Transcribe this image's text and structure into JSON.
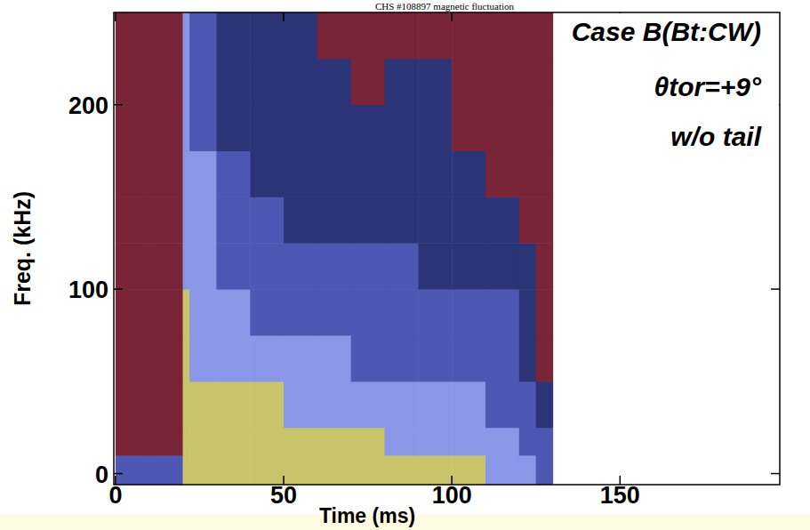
{
  "chart_data": {
    "type": "heatmap",
    "title": "CHS #108897 magnetic fluctuation",
    "x_label": "Time (ms)",
    "y_label": "Freq. (kHz)",
    "annotations": [
      "Case B(Bt:CW)",
      "θtor=+9°",
      "w/o tail"
    ],
    "xlim": [
      -0.5,
      197.5
    ],
    "xticks": [
      0,
      50,
      100,
      150
    ],
    "ylim": [
      -6,
      250
    ],
    "yticks": [
      0,
      100,
      200
    ],
    "grid": false,
    "colors": [
      "#7a2438",
      "#2c3478",
      "#4c58b4",
      "#8a96e6",
      "#c8c46a"
    ],
    "x_bins": [
      0,
      10,
      20,
      22,
      30,
      40,
      50,
      60,
      70,
      80,
      90,
      100,
      110,
      120,
      125,
      130
    ],
    "y_bins": [
      -6,
      10,
      25,
      50,
      75,
      100,
      125,
      150,
      175,
      200,
      225,
      250
    ],
    "cells": [
      [
        2,
        2,
        4,
        4,
        4,
        4,
        4,
        4,
        4,
        4,
        4,
        4,
        3,
        3,
        2
      ],
      [
        0,
        0,
        4,
        4,
        4,
        4,
        4,
        4,
        4,
        3,
        3,
        3,
        3,
        2,
        2
      ],
      [
        0,
        0,
        4,
        4,
        4,
        4,
        3,
        3,
        3,
        3,
        3,
        3,
        2,
        2,
        1
      ],
      [
        0,
        0,
        4,
        3,
        3,
        3,
        3,
        3,
        2,
        2,
        2,
        2,
        2,
        1,
        0
      ],
      [
        0,
        0,
        4,
        3,
        3,
        2,
        2,
        2,
        2,
        2,
        2,
        2,
        2,
        1,
        0
      ],
      [
        0,
        0,
        3,
        3,
        2,
        2,
        2,
        2,
        2,
        2,
        1,
        1,
        1,
        1,
        0
      ],
      [
        0,
        0,
        3,
        3,
        2,
        2,
        1,
        1,
        1,
        1,
        1,
        1,
        1,
        0,
        0
      ],
      [
        0,
        0,
        3,
        3,
        2,
        1,
        1,
        1,
        1,
        1,
        1,
        1,
        0,
        0,
        0
      ],
      [
        0,
        0,
        3,
        2,
        1,
        1,
        1,
        1,
        1,
        1,
        1,
        0,
        0,
        0,
        0
      ],
      [
        0,
        0,
        3,
        2,
        1,
        1,
        1,
        1,
        0,
        1,
        1,
        0,
        0,
        0,
        0
      ],
      [
        0,
        0,
        3,
        2,
        1,
        1,
        1,
        0,
        0,
        0,
        0,
        0,
        0,
        0,
        0
      ]
    ]
  }
}
